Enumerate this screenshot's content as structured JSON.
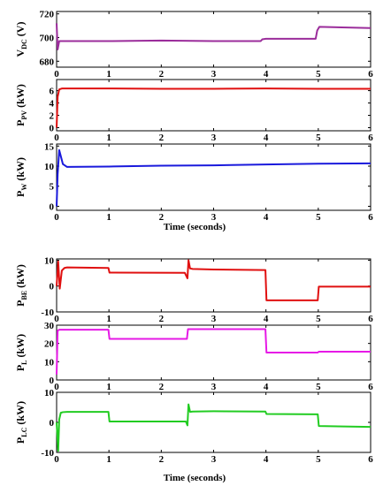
{
  "figure": {
    "xlabel_top": "Time (seconds)",
    "xlabel_bottom": "Time (seconds)"
  },
  "chart_data": [
    {
      "type": "line",
      "ylabel": {
        "main": "V",
        "sub": "DC",
        "unit": " (V)"
      },
      "xlim": [
        0,
        6
      ],
      "ylim": [
        675,
        722
      ],
      "xticks": [
        0,
        1,
        2,
        3,
        4,
        5,
        6
      ],
      "yticks": [
        680,
        700,
        720
      ],
      "series": [
        {
          "color": "#9b2d9b",
          "x": [
            0,
            0.02,
            0.05,
            0.08,
            1,
            2,
            3,
            3.9,
            3.93,
            4,
            4.95,
            4.98,
            5.02,
            6
          ],
          "y": [
            712,
            690,
            697,
            697,
            697,
            697.5,
            697,
            697,
            698.5,
            699,
            699,
            706,
            709,
            708
          ]
        }
      ]
    },
    {
      "type": "line",
      "ylabel": {
        "main": "P",
        "sub": "PV",
        "unit": " (kW)"
      },
      "xlim": [
        0,
        6
      ],
      "ylim": [
        -0.5,
        7.8
      ],
      "xticks": [
        0,
        1,
        2,
        3,
        4,
        5,
        6
      ],
      "yticks": [
        0,
        2,
        4,
        6
      ],
      "series": [
        {
          "color": "#e01010",
          "x": [
            0,
            0.02,
            0.05,
            0.1,
            1,
            2,
            3,
            4,
            5,
            6
          ],
          "y": [
            0,
            5.0,
            6.2,
            6.35,
            6.35,
            6.3,
            6.3,
            6.35,
            6.3,
            6.3
          ]
        }
      ]
    },
    {
      "type": "line",
      "ylabel": {
        "main": "P",
        "sub": "W",
        "unit": " (kW)"
      },
      "xlim": [
        0,
        6
      ],
      "ylim": [
        -1,
        15.5
      ],
      "xticks": [
        0,
        1,
        2,
        3,
        4,
        5,
        6
      ],
      "yticks": [
        0,
        5,
        10,
        15
      ],
      "series": [
        {
          "color": "#1a1adc",
          "x": [
            0,
            0.02,
            0.05,
            0.08,
            0.12,
            0.2,
            1,
            2,
            3,
            4,
            5,
            6
          ],
          "y": [
            0,
            8,
            14,
            12.5,
            10.5,
            9.8,
            9.9,
            10.1,
            10.2,
            10.4,
            10.6,
            10.7
          ]
        }
      ]
    },
    {
      "type": "line",
      "ylabel": {
        "main": "P",
        "sub": "BE",
        "unit": " (kW)"
      },
      "xlim": [
        0,
        6
      ],
      "ylim": [
        -10,
        10.5
      ],
      "xticks": [
        0,
        1,
        2,
        3,
        4,
        5,
        6
      ],
      "yticks": [
        -10,
        0,
        10
      ],
      "series": [
        {
          "color": "#e01010",
          "x": [
            0,
            0.03,
            0.06,
            0.1,
            0.15,
            0.2,
            0.99,
            1.01,
            2.45,
            2.5,
            2.52,
            2.55,
            2.6,
            3,
            3.99,
            4.01,
            4.99,
            5.01,
            6
          ],
          "y": [
            0,
            9.5,
            -1,
            6,
            7,
            7.2,
            7,
            5.2,
            5.1,
            3.0,
            10,
            6.8,
            6.6,
            6.4,
            6.2,
            -5.5,
            -5.5,
            -0.2,
            -0.2
          ]
        }
      ]
    },
    {
      "type": "line",
      "ylabel": {
        "main": "P",
        "sub": "L",
        "unit": " (kW)"
      },
      "xlim": [
        0,
        6
      ],
      "ylim": [
        0,
        30
      ],
      "xticks": [
        0,
        1,
        2,
        3,
        4,
        5,
        6
      ],
      "yticks": [
        0,
        10,
        20,
        30
      ],
      "series": [
        {
          "color": "#e619e6",
          "x": [
            0,
            0.02,
            0.05,
            0.99,
            1.01,
            2.49,
            2.51,
            3.99,
            4.01,
            4.99,
            5.01,
            6
          ],
          "y": [
            3,
            27,
            27.5,
            27.5,
            22.5,
            22.5,
            27.8,
            27.8,
            15,
            15,
            15.5,
            15.5
          ]
        }
      ]
    },
    {
      "type": "line",
      "ylabel": {
        "main": "P",
        "sub": "LC",
        "unit": " (kW)"
      },
      "xlim": [
        0,
        6
      ],
      "ylim": [
        -10,
        10
      ],
      "xticks": [
        0,
        1,
        2,
        3,
        4,
        5,
        6
      ],
      "yticks": [
        -10,
        0,
        10
      ],
      "series": [
        {
          "color": "#22cc22",
          "x": [
            0,
            0.03,
            0.05,
            0.08,
            0.12,
            0.2,
            0.99,
            1.01,
            2.47,
            2.5,
            2.52,
            2.55,
            2.6,
            3,
            3.99,
            4.01,
            4.99,
            5.01,
            6
          ],
          "y": [
            0,
            -9.5,
            1,
            3.2,
            3.4,
            3.5,
            3.5,
            0.3,
            0.3,
            -1,
            6,
            3.5,
            3.6,
            3.7,
            3.6,
            2.8,
            2.7,
            -1.2,
            -1.5
          ]
        }
      ]
    }
  ]
}
